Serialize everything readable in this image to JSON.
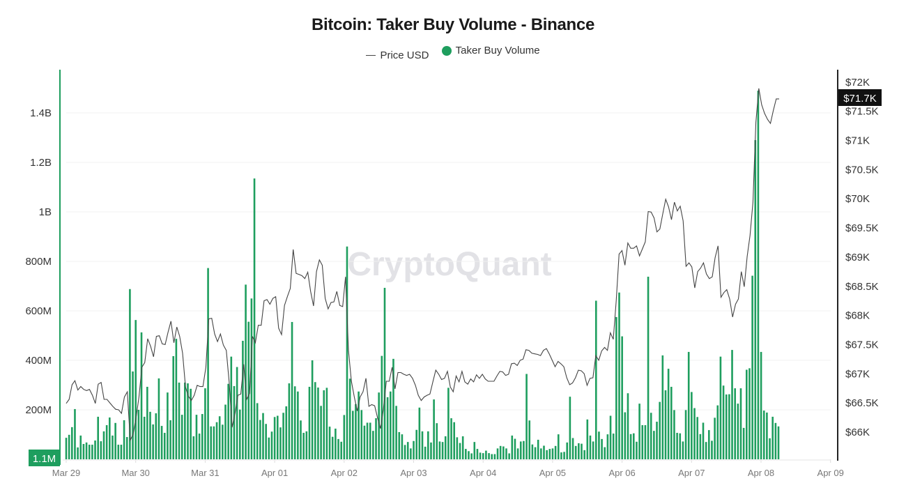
{
  "chart_data": {
    "type": "bar+line",
    "title": "Bitcoin: Taker Buy Volume - Binance",
    "watermark": "CryptoQuant",
    "legend": {
      "placement": "top-center",
      "items": [
        "Price USD",
        "Taker Buy Volume"
      ]
    },
    "colors": {
      "volume": "#1e9e5e",
      "price": "#444444",
      "left_axis": "#1e9e5e",
      "right_axis": "#222222"
    },
    "x_ticks": [
      "Mar 29",
      "Mar 30",
      "Mar 31",
      "Apr 01",
      "Apr 02",
      "Apr 03",
      "Apr 04",
      "Apr 05",
      "Apr 06",
      "Apr 07",
      "Apr 08",
      "Apr 09"
    ],
    "y_left": {
      "ticks": [
        "200M",
        "400M",
        "600M",
        "800M",
        "1B",
        "1.2B",
        "1.4B"
      ],
      "tick_values": [
        200,
        400,
        600,
        800,
        1000,
        1200,
        1400
      ],
      "unit": "M",
      "range": [
        0,
        1580
      ],
      "marker_label": "1.1M"
    },
    "y_right": {
      "ticks": [
        "$66K",
        "$66.5K",
        "$67K",
        "$67.5K",
        "$68K",
        "$68.5K",
        "$69K",
        "$69.5K",
        "$70K",
        "$70.5K",
        "$71K",
        "$71.5K",
        "$72K"
      ],
      "tick_values": [
        66,
        66.5,
        67,
        67.5,
        68,
        68.5,
        69,
        69.5,
        70,
        70.5,
        71,
        71.5,
        72
      ],
      "unit": "K USD",
      "range": [
        65.52,
        72.2
      ],
      "marker_label": "$71.7K"
    },
    "grid": true,
    "series": [
      {
        "name": "Taker Buy Volume",
        "type": "bar",
        "axis": "left",
        "values": [
          87,
          99,
          130,
          203,
          48,
          96,
          62,
          68,
          59,
          59,
          76,
          172,
          73,
          113,
          138,
          169,
          96,
          147,
          59,
          59,
          158,
          90,
          688,
          355,
          563,
          200,
          513,
          172,
          293,
          192,
          141,
          186,
          327,
          135,
          107,
          270,
          158,
          417,
          487,
          310,
          180,
          310,
          307,
          285,
          93,
          180,
          104,
          183,
          287,
          773,
          133,
          133,
          150,
          174,
          140,
          221,
          305,
          415,
          296,
          373,
          201,
          479,
          706,
          556,
          650,
          1135,
          227,
          159,
          187,
          143,
          88,
          112,
          171,
          176,
          129,
          188,
          214,
          307,
          555,
          295,
          274,
          157,
          107,
          113,
          293,
          400,
          312,
          290,
          216,
          279,
          289,
          132,
          91,
          124,
          82,
          71,
          179,
          860,
          326,
          196,
          223,
          274,
          199,
          136,
          148,
          148,
          115,
          166,
          270,
          418,
          693,
          251,
          274,
          406,
          216,
          110,
          101,
          58,
          70,
          44,
          74,
          119,
          209,
          113,
          51,
          113,
          68,
          242,
          146,
          72,
          70,
          93,
          289,
          166,
          150,
          89,
          66,
          93,
          42,
          33,
          24,
          70,
          42,
          27,
          25,
          35,
          25,
          21,
          21,
          44,
          54,
          52,
          44,
          24,
          96,
          83,
          44,
          72,
          74,
          345,
          157,
          60,
          49,
          79,
          44,
          55,
          37,
          42,
          44,
          54,
          101,
          28,
          30,
          68,
          253,
          86,
          54,
          65,
          63,
          37,
          161,
          96,
          72,
          641,
          112,
          82,
          49,
          101,
          176,
          104,
          575,
          674,
          497,
          190,
          267,
          102,
          105,
          71,
          225,
          138,
          138,
          738,
          188,
          115,
          152,
          232,
          420,
          279,
          366,
          293,
          199,
          107,
          105,
          72,
          199,
          434,
          272,
          207,
          171,
          102,
          148,
          70,
          118,
          75,
          168,
          218,
          415,
          298,
          262,
          263,
          442,
          287,
          225,
          287,
          127,
          362,
          368,
          742,
          1290,
          1490,
          434,
          197,
          189,
          85,
          172,
          147,
          133
        ]
      },
      {
        "name": "Price USD",
        "type": "line",
        "axis": "right",
        "values": [
          66.48,
          66.55,
          66.8,
          66.87,
          66.71,
          66.77,
          66.72,
          66.7,
          66.72,
          66.62,
          66.48,
          66.81,
          66.84,
          66.55,
          66.55,
          66.49,
          66.43,
          66.38,
          66.37,
          66.31,
          66.59,
          66.68,
          65.85,
          65.95,
          66.23,
          66.59,
          67.1,
          67.18,
          67.59,
          67.46,
          67.28,
          67.63,
          67.64,
          67.5,
          67.49,
          67.7,
          67.89,
          67.52,
          67.79,
          67.63,
          67.34,
          66.76,
          66.6,
          66.53,
          66.62,
          66.79,
          66.77,
          66.77,
          67.1,
          67.93,
          67.94,
          67.67,
          67.54,
          67.67,
          67.48,
          67.39,
          66.85,
          66.07,
          66.31,
          66.62,
          66.64,
          67.15,
          66.55,
          66.65,
          67.63,
          67.52,
          67.82,
          67.82,
          68.24,
          68.26,
          68.18,
          68.28,
          68.31,
          67.77,
          67.66,
          68.16,
          68.31,
          68.45,
          69.12,
          68.71,
          68.69,
          68.67,
          68.62,
          68.73,
          68.4,
          68.15,
          68.74,
          68.94,
          68.85,
          68.28,
          68.1,
          68.21,
          68.22,
          68.4,
          68.16,
          68.14,
          68.65,
          67.39,
          66.86,
          66.59,
          66.35,
          66.59,
          66.68,
          66.91,
          66.43,
          66.46,
          66.44,
          66.23,
          66.05,
          66.38,
          66.86,
          66.86,
          67.1,
          66.73,
          67.01,
          67.01,
          66.98,
          66.96,
          66.98,
          66.91,
          66.79,
          66.62,
          66.53,
          66.59,
          66.62,
          66.64,
          66.85,
          67.05,
          66.98,
          66.89,
          66.91,
          67.03,
          66.76,
          66.68,
          66.95,
          66.85,
          67.03,
          66.85,
          66.81,
          66.9,
          66.85,
          66.97,
          66.91,
          66.98,
          66.9,
          66.86,
          66.86,
          66.86,
          66.95,
          67.03,
          67.02,
          66.96,
          66.98,
          67.16,
          67.17,
          67.13,
          67.22,
          67.24,
          67.4,
          67.39,
          67.34,
          67.33,
          67.32,
          67.3,
          67.39,
          67.42,
          67.33,
          67.22,
          67.11,
          67.2,
          67.16,
          67.11,
          66.92,
          66.8,
          66.83,
          66.92,
          67.05,
          67.04,
          66.99,
          66.79,
          66.91,
          66.92,
          67.3,
          67.22,
          67.38,
          67.44,
          67.39,
          67.69,
          67.58,
          68.24,
          69.04,
          69.1,
          68.85,
          69.23,
          69.14,
          69.14,
          69.18,
          69.01,
          69.13,
          69.25,
          69.77,
          69.76,
          69.66,
          69.42,
          69.47,
          69.73,
          69.98,
          69.85,
          69.63,
          69.93,
          69.78,
          69.86,
          69.61,
          68.83,
          68.89,
          68.82,
          68.46,
          68.74,
          68.8,
          68.89,
          68.7,
          68.62,
          68.65,
          68.98,
          69.18,
          68.3,
          68.38,
          68.43,
          68.27,
          67.96,
          68.18,
          68.27,
          68.74,
          68.48,
          69.0,
          69.36,
          69.93,
          71.3,
          71.88,
          71.6,
          71.45,
          71.35,
          71.28,
          71.5,
          71.7,
          71.7
        ]
      }
    ]
  }
}
